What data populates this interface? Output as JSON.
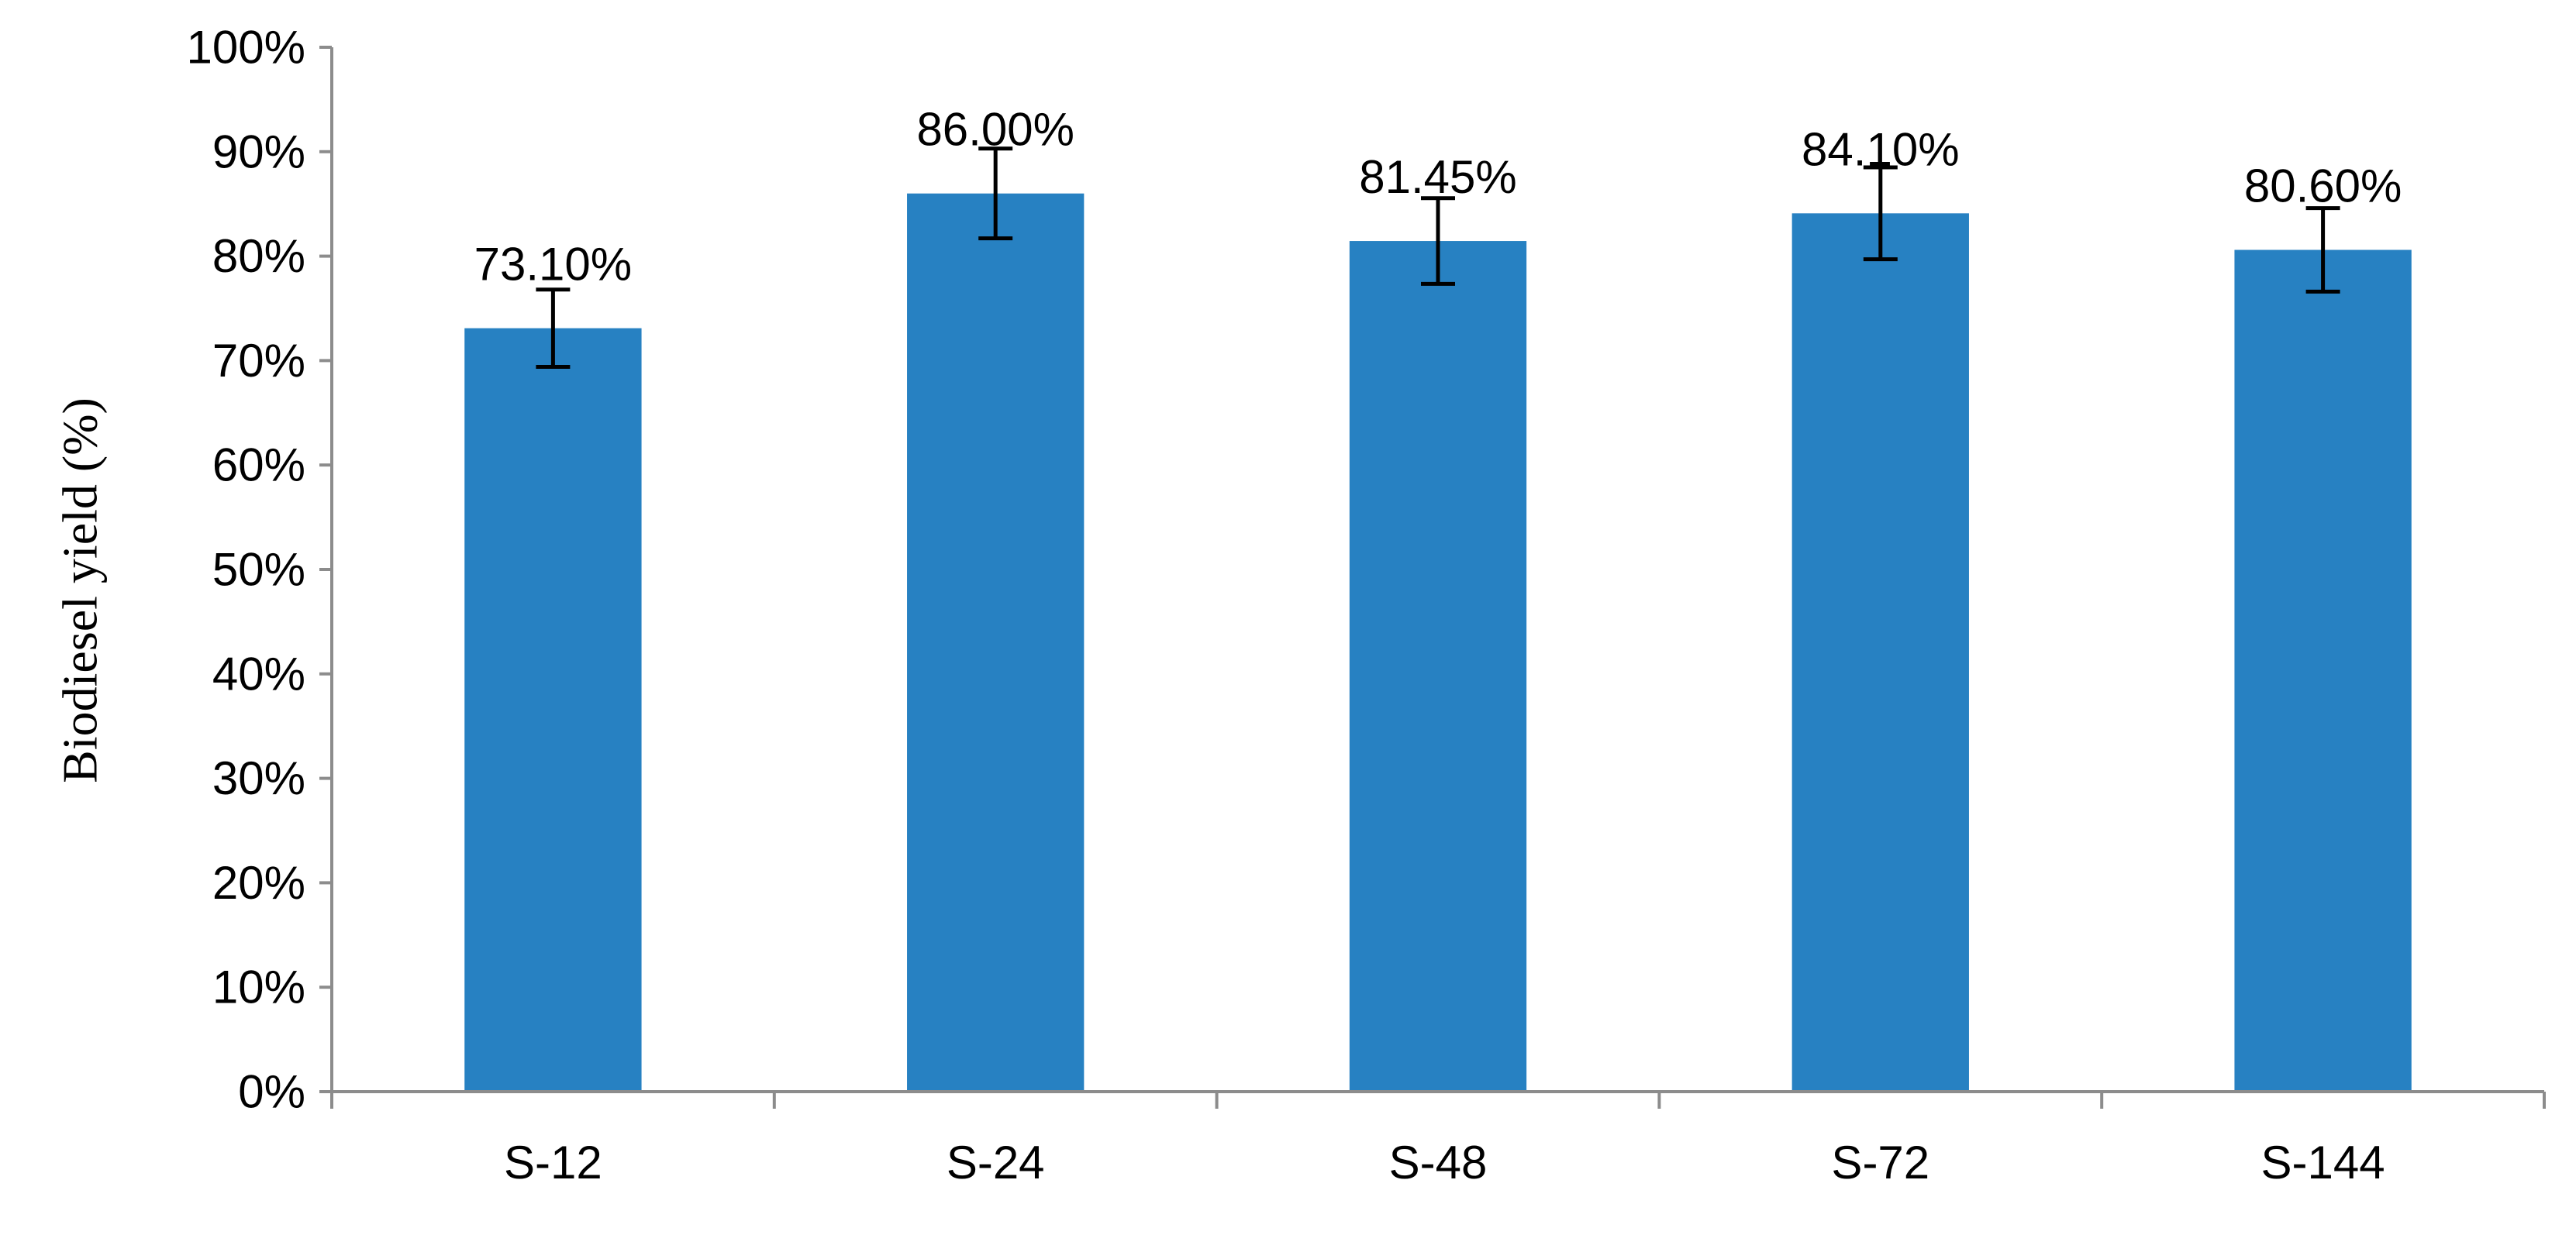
{
  "chart_data": {
    "type": "bar",
    "title": "",
    "xlabel": "",
    "ylabel": "Biodiesel yield (%)",
    "categories": [
      "S-12",
      "S-24",
      "S-48",
      "S-72",
      "S-144"
    ],
    "values": [
      73.1,
      86.0,
      81.45,
      84.1,
      80.6
    ],
    "data_labels": [
      "73.10%",
      "86.00%",
      "81.45%",
      "84.10%",
      "80.60%"
    ],
    "error": [
      3.7,
      4.3,
      4.1,
      4.4,
      4.0
    ],
    "ylim": [
      0,
      100
    ],
    "yticks": [
      0,
      10,
      20,
      30,
      40,
      50,
      60,
      70,
      80,
      90,
      100
    ],
    "ytick_labels": [
      "0%",
      "10%",
      "20%",
      "30%",
      "40%",
      "50%",
      "60%",
      "70%",
      "80%",
      "90%",
      "100%"
    ],
    "grid": false,
    "legend": "none",
    "colors": {
      "bar": "#2781C2",
      "axis": "#8C8C8C",
      "error_bar": "#000000",
      "text": "#000000"
    }
  }
}
